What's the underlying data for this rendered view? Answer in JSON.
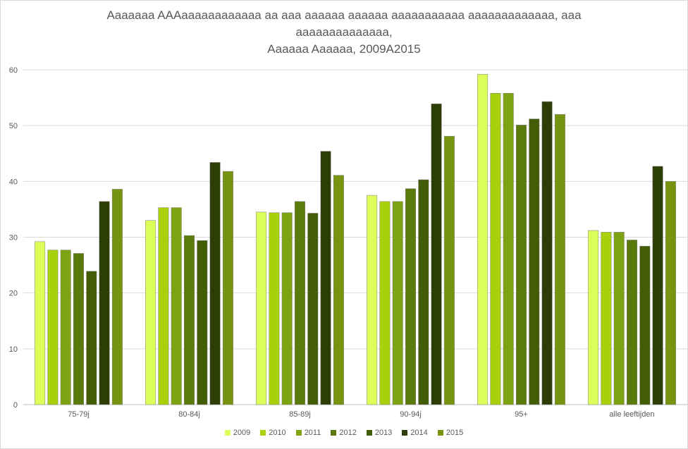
{
  "chart_data": {
    "type": "bar",
    "title_lines": [
      "Aaaaaaa AAAaaaaaaaaaaaa aa aaa aaaaaa aaaaaa aaaaaaaaaaa aaaaaaaaaaaaa, aaa",
      "aaaaaaaaaaaaaa,",
      "Aaaaaa Aaaaaa, 2009A2015"
    ],
    "categories": [
      "75-79j",
      "80-84j",
      "85-89j",
      "90-94j",
      "95+",
      "alle leeftijden"
    ],
    "ylim": [
      0,
      60
    ],
    "yticks": [
      0,
      10,
      20,
      30,
      40,
      50,
      60
    ],
    "grid": true,
    "legend_position": "bottom",
    "series": [
      {
        "name": "2009",
        "color": "#dcff5a",
        "values": [
          29.2,
          33.0,
          34.5,
          37.5,
          59.2,
          31.2
        ]
      },
      {
        "name": "2010",
        "color": "#a8d10b",
        "values": [
          27.7,
          35.3,
          34.4,
          36.4,
          55.8,
          30.9
        ]
      },
      {
        "name": "2011",
        "color": "#7da313",
        "values": [
          27.7,
          35.3,
          34.4,
          36.4,
          55.8,
          30.9
        ]
      },
      {
        "name": "2012",
        "color": "#5a7b0c",
        "values": [
          27.1,
          30.3,
          36.4,
          38.7,
          50.1,
          29.5
        ]
      },
      {
        "name": "2013",
        "color": "#435d07",
        "values": [
          23.9,
          29.4,
          34.3,
          40.3,
          51.2,
          28.4
        ]
      },
      {
        "name": "2014",
        "color": "#2d3d06",
        "values": [
          36.4,
          43.4,
          45.4,
          53.9,
          54.3,
          42.7
        ]
      },
      {
        "name": "2015",
        "color": "#769410",
        "values": [
          38.6,
          41.8,
          41.1,
          48.1,
          52.0,
          40.0
        ]
      }
    ]
  }
}
